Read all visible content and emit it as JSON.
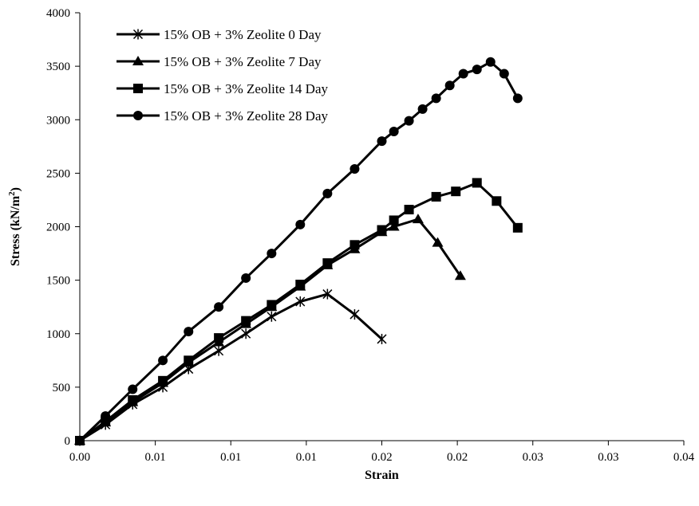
{
  "chart_data": {
    "type": "line",
    "xlabel": "Strain",
    "ylabel_main": "Stress (kN/m",
    "ylabel_sup": "2",
    "ylabel_close": ")",
    "xlim": [
      0,
      0.04
    ],
    "ylim": [
      0,
      4000
    ],
    "x_ticks": [
      0,
      0.005,
      0.01,
      0.015,
      0.02,
      0.025,
      0.03,
      0.035,
      0.04
    ],
    "x_tick_labels": [
      "0.00",
      "0.01",
      "0.01",
      "0.01",
      "0.02",
      "0.02",
      "0.03",
      "0.03",
      "0.04"
    ],
    "y_ticks": [
      0,
      500,
      1000,
      1500,
      2000,
      2500,
      3000,
      3500,
      4000
    ],
    "y_tick_labels": [
      "0",
      "500",
      "1000",
      "1500",
      "2000",
      "2500",
      "3000",
      "3500",
      "4000"
    ],
    "grid": false,
    "legend_position": "top-left",
    "series": [
      {
        "name": "15% OB + 3% Zeolite 0 Day",
        "marker": "star",
        "x": [
          0,
          0.0017,
          0.0035,
          0.0055,
          0.0072,
          0.0092,
          0.011,
          0.0127,
          0.0146,
          0.0164,
          0.0182,
          0.02,
          0.0218,
          0.0237
        ],
        "y": [
          0,
          150,
          340,
          500,
          670,
          840,
          1000,
          1160,
          1300,
          1370,
          1180,
          950,
          null,
          null
        ]
      },
      {
        "name": "15% OB + 3% Zeolite 7 Day",
        "marker": "triangle",
        "x": [
          0,
          0.0017,
          0.0035,
          0.0055,
          0.0072,
          0.0092,
          0.011,
          0.0127,
          0.0146,
          0.0164,
          0.0182,
          0.02,
          0.0208,
          0.0224,
          0.0237,
          0.0252
        ],
        "y": [
          0,
          170,
          360,
          540,
          730,
          920,
          1090,
          1250,
          1440,
          1640,
          1790,
          1950,
          2000,
          2070,
          1850,
          1540
        ]
      },
      {
        "name": "15% OB + 3% Zeolite 14 Day",
        "marker": "square",
        "x": [
          0,
          0.0017,
          0.0035,
          0.0055,
          0.0072,
          0.0092,
          0.011,
          0.0127,
          0.0146,
          0.0164,
          0.0182,
          0.02,
          0.0208,
          0.0218,
          0.0236,
          0.0249,
          0.0263,
          0.0276,
          0.029
        ],
        "y": [
          0,
          180,
          380,
          560,
          750,
          960,
          1120,
          1270,
          1460,
          1660,
          1830,
          1970,
          2060,
          2160,
          2280,
          2330,
          2410,
          2240,
          1990
        ]
      },
      {
        "name": "15% OB + 3% Zeolite 28 Day",
        "marker": "circle",
        "x": [
          0,
          0.0017,
          0.0035,
          0.0055,
          0.0072,
          0.0092,
          0.011,
          0.0127,
          0.0146,
          0.0164,
          0.0182,
          0.02,
          0.0208,
          0.0218,
          0.0227,
          0.0236,
          0.0245,
          0.0254,
          0.0263,
          0.0272,
          0.0281,
          0.029
        ],
        "y": [
          0,
          230,
          480,
          750,
          1020,
          1250,
          1520,
          1750,
          2020,
          2310,
          2540,
          2800,
          2890,
          2990,
          3100,
          3200,
          3320,
          3430,
          3470,
          3540,
          3430,
          3200
        ]
      }
    ]
  }
}
